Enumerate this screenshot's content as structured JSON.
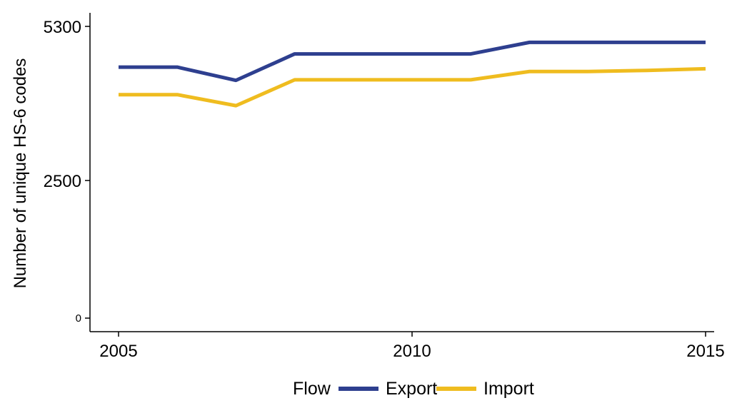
{
  "chart_data": {
    "type": "line",
    "title": "",
    "xlabel": "",
    "ylabel": "Number of unique HS-6 codes",
    "x": [
      2005,
      2006,
      2007,
      2008,
      2009,
      2010,
      2011,
      2012,
      2013,
      2014,
      2015
    ],
    "x_ticks": [
      2005,
      2010,
      2015
    ],
    "x_tick_labels": [
      "2005",
      "2010",
      "2015"
    ],
    "y_ticks": [
      0,
      2500,
      5300
    ],
    "y_tick_labels": [
      "0",
      "2500",
      "5300"
    ],
    "xlim": [
      2005,
      2015
    ],
    "ylim": [
      0,
      5300
    ],
    "grid": false,
    "legend": {
      "title": "Flow",
      "position": "bottom"
    },
    "series": [
      {
        "name": "Export",
        "color": "#2e3f8f",
        "values": [
          4560,
          4560,
          4320,
          4800,
          4800,
          4800,
          4800,
          5010,
          5010,
          5010,
          5010
        ]
      },
      {
        "name": "Import",
        "color": "#efbc1f",
        "values": [
          4060,
          4060,
          3860,
          4330,
          4330,
          4330,
          4330,
          4480,
          4480,
          4500,
          4530
        ]
      }
    ]
  }
}
